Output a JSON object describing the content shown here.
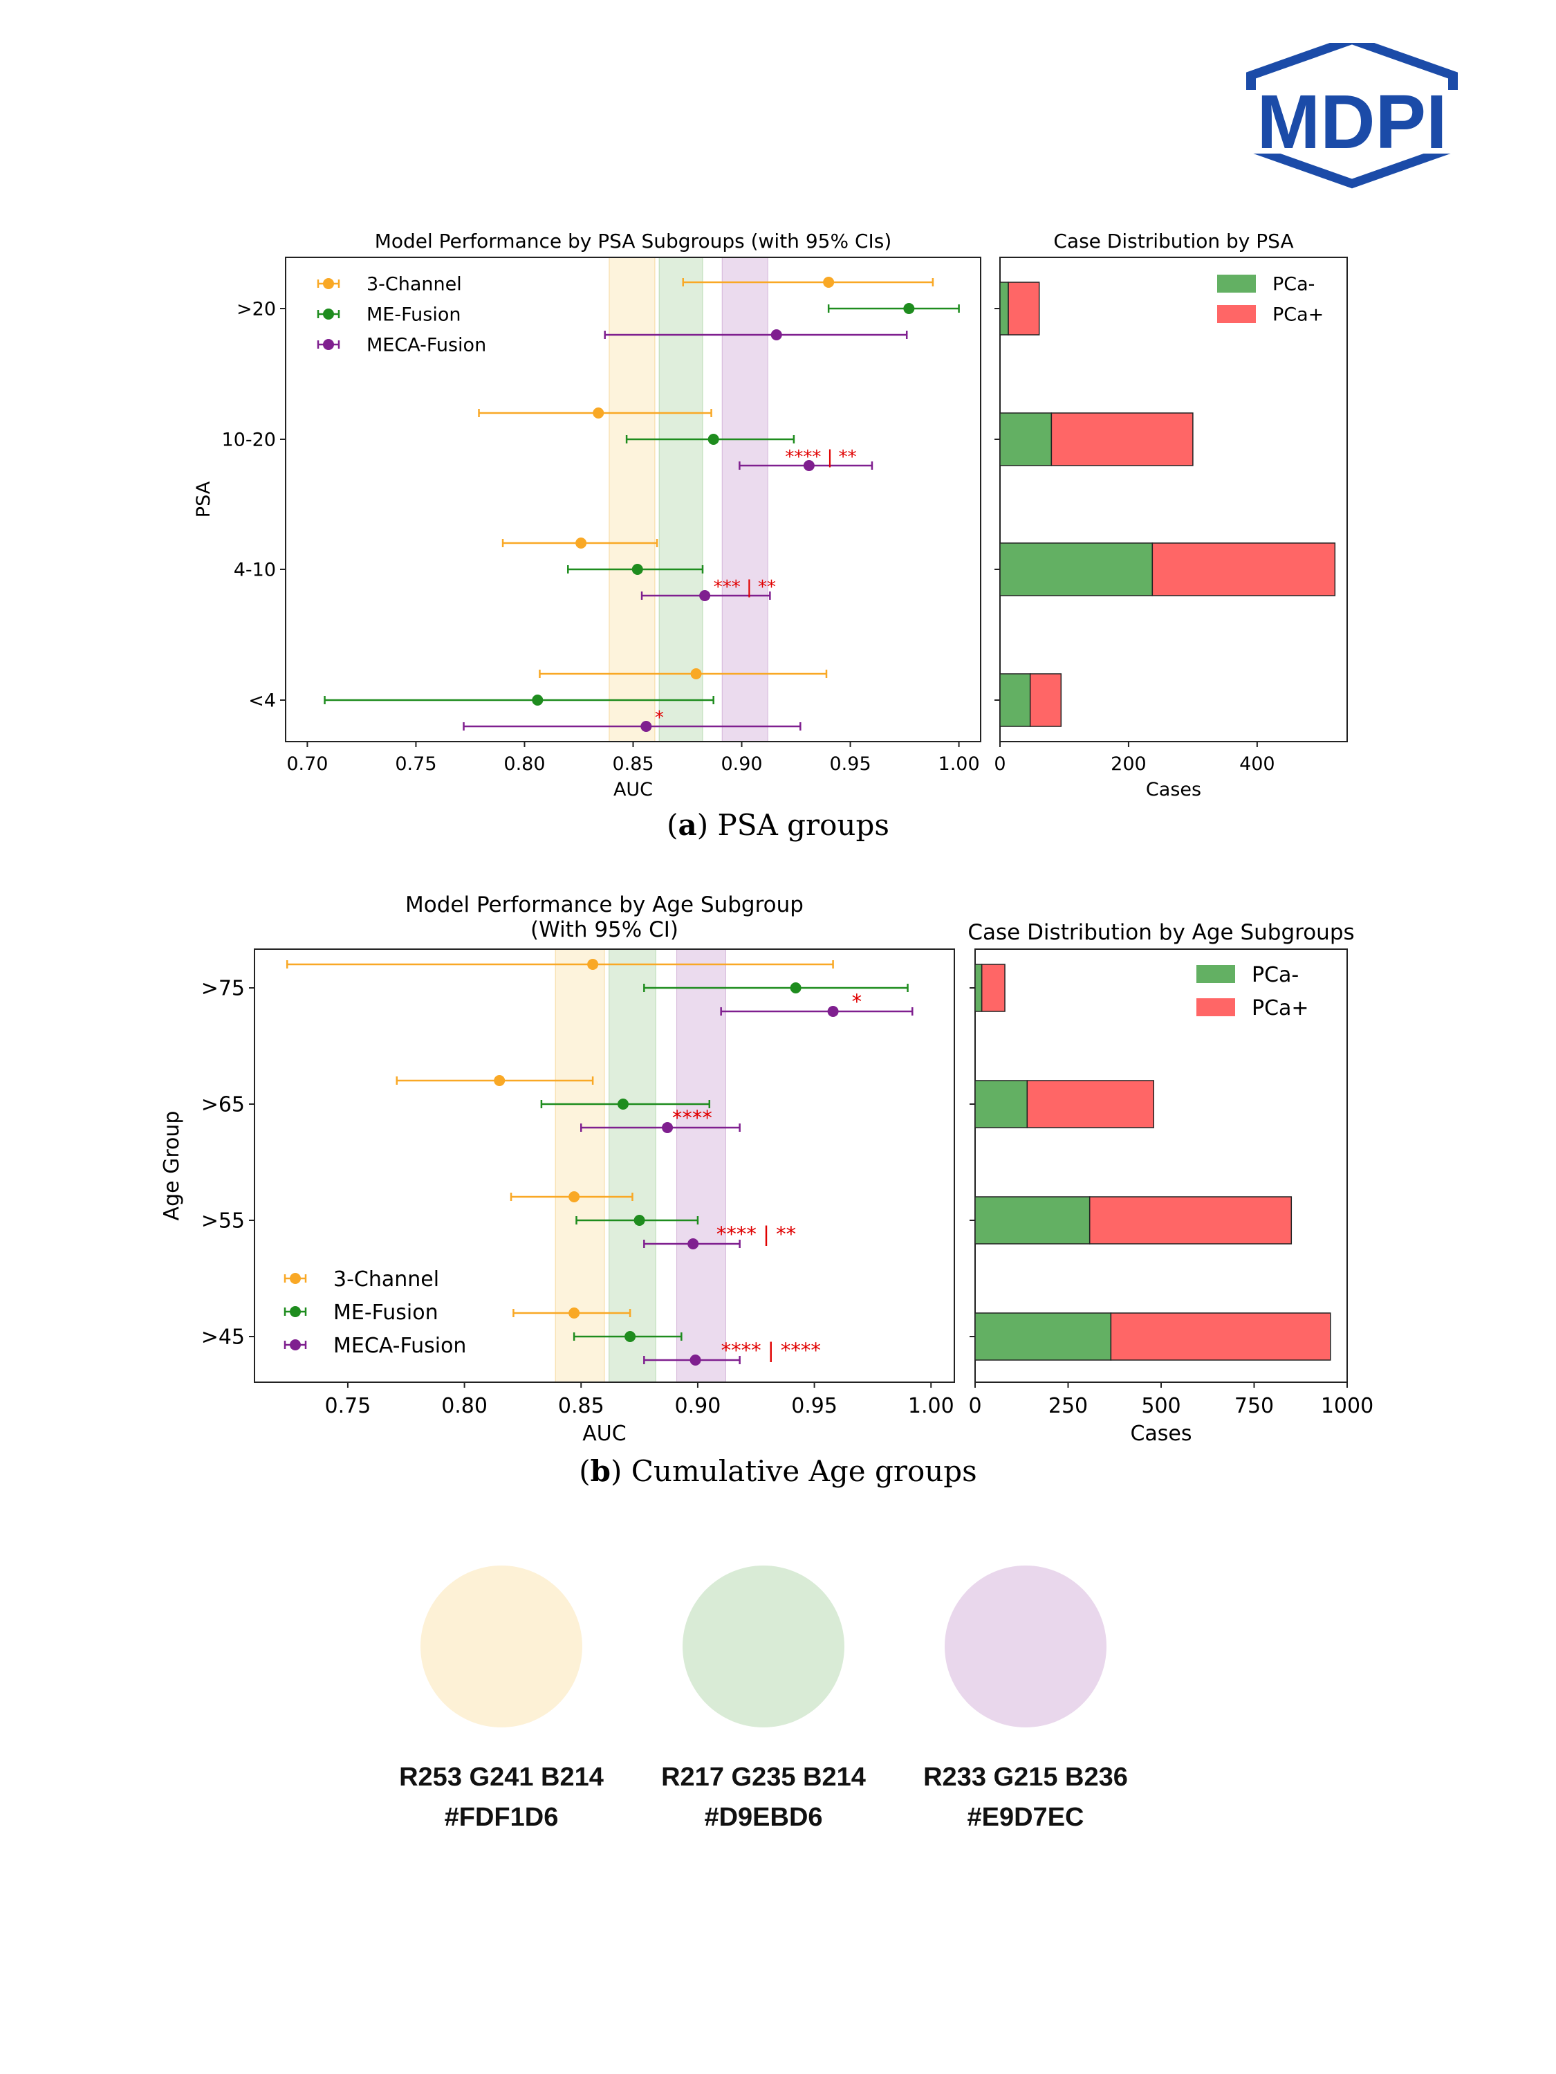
{
  "publisher": {
    "logo_text": "MDPI",
    "color": "#1b4ba8"
  },
  "colors": {
    "three_channel": "#f9a825",
    "me_fusion": "#1e8c1e",
    "meca_fusion": "#7f1f8f",
    "significance": "#e00000",
    "pca_neg": "#63b063",
    "pca_pos": "#ff6666"
  },
  "figure_a": {
    "caption_label": "a",
    "caption_text": "PSA groups"
  },
  "figure_b": {
    "caption_label": "b",
    "caption_text": "Cumulative Age groups"
  },
  "chart_data": [
    {
      "id": "psa-auc",
      "type": "scatter",
      "title": "Model Performance by PSA Subgroups (with 95% CIs)",
      "xlabel": "AUC",
      "ylabel": "PSA",
      "xlim": [
        0.69,
        1.01
      ],
      "xticks": [
        "0.70",
        "0.75",
        "0.80",
        "0.85",
        "0.90",
        "0.95",
        "1.00"
      ],
      "categories": [
        ">20",
        "10-20",
        "4-10",
        "<4"
      ],
      "legend": [
        "3-Channel",
        "ME-Fusion",
        "MECA-Fusion"
      ],
      "legend_position": "top-left",
      "bands": [
        {
          "name": "3-Channel",
          "from": 0.839,
          "to": 0.86
        },
        {
          "name": "ME-Fusion",
          "from": 0.862,
          "to": 0.882
        },
        {
          "name": "MECA-Fusion",
          "from": 0.891,
          "to": 0.912
        }
      ],
      "series": [
        {
          "name": "3-Channel",
          "values": [
            0.94,
            0.834,
            0.826,
            0.879
          ],
          "low": [
            0.873,
            0.779,
            0.79,
            0.807
          ],
          "high": [
            0.988,
            0.886,
            0.861,
            0.939
          ]
        },
        {
          "name": "ME-Fusion",
          "values": [
            0.977,
            0.887,
            0.852,
            0.806
          ],
          "low": [
            0.94,
            0.847,
            0.82,
            0.708
          ],
          "high": [
            1.0,
            0.924,
            0.882,
            0.887
          ]
        },
        {
          "name": "MECA-Fusion",
          "values": [
            0.916,
            0.931,
            0.883,
            0.856
          ],
          "low": [
            0.837,
            0.899,
            0.854,
            0.772
          ],
          "high": [
            0.976,
            0.96,
            0.913,
            0.927
          ]
        }
      ],
      "annotations": [
        {
          "category": "10-20",
          "series": "MECA-Fusion",
          "x": 0.92,
          "text": "**** | **"
        },
        {
          "category": "4-10",
          "series": "MECA-Fusion",
          "x": 0.887,
          "text": "*** | **"
        },
        {
          "category": "<4",
          "series": "MECA-Fusion",
          "x": 0.86,
          "text": "*"
        }
      ]
    },
    {
      "id": "psa-cases",
      "type": "bar",
      "title": "Case Distribution by PSA",
      "xlabel": "Cases",
      "ylabel": "",
      "xlim": [
        0,
        540
      ],
      "xticks": [
        "0",
        "200",
        "400"
      ],
      "categories": [
        ">20",
        "10-20",
        "4-10",
        "<4"
      ],
      "legend": [
        "PCa-",
        "PCa+"
      ],
      "legend_position": "top-right",
      "series": [
        {
          "name": "PCa-",
          "values": [
            13,
            80,
            237,
            47
          ]
        },
        {
          "name": "PCa+",
          "values": [
            48,
            220,
            284,
            48
          ]
        }
      ]
    },
    {
      "id": "age-auc",
      "type": "scatter",
      "title": "Model Performance by Age Subgroup",
      "subtitle": "(With 95% CI)",
      "xlabel": "AUC",
      "ylabel": "Age Group",
      "xlim": [
        0.71,
        1.01
      ],
      "xticks": [
        "0.75",
        "0.80",
        "0.85",
        "0.90",
        "0.95",
        "1.00"
      ],
      "categories": [
        ">75",
        ">65",
        ">55",
        ">45"
      ],
      "legend": [
        "3-Channel",
        "ME-Fusion",
        "MECA-Fusion"
      ],
      "legend_position": "bottom-left",
      "bands": [
        {
          "name": "3-Channel",
          "from": 0.839,
          "to": 0.86
        },
        {
          "name": "ME-Fusion",
          "from": 0.862,
          "to": 0.882
        },
        {
          "name": "MECA-Fusion",
          "from": 0.891,
          "to": 0.912
        }
      ],
      "series": [
        {
          "name": "3-Channel",
          "values": [
            0.855,
            0.815,
            0.847,
            0.847
          ],
          "low": [
            0.724,
            0.771,
            0.82,
            0.821
          ],
          "high": [
            0.958,
            0.855,
            0.872,
            0.871
          ]
        },
        {
          "name": "ME-Fusion",
          "values": [
            0.942,
            0.868,
            0.875,
            0.871
          ],
          "low": [
            0.877,
            0.833,
            0.848,
            0.847
          ],
          "high": [
            0.99,
            0.905,
            0.9,
            0.893
          ]
        },
        {
          "name": "MECA-Fusion",
          "values": [
            0.958,
            0.887,
            0.898,
            0.899
          ],
          "low": [
            0.91,
            0.85,
            0.877,
            0.877
          ],
          "high": [
            0.992,
            0.918,
            0.918,
            0.918
          ]
        }
      ],
      "annotations": [
        {
          "category": ">75",
          "series": "MECA-Fusion",
          "x": 0.966,
          "text": "*"
        },
        {
          "category": ">65",
          "series": "MECA-Fusion",
          "x": 0.889,
          "text": "****"
        },
        {
          "category": ">55",
          "series": "MECA-Fusion",
          "x": 0.908,
          "text": "**** | **"
        },
        {
          "category": ">45",
          "series": "MECA-Fusion",
          "x": 0.91,
          "text": "**** | ****"
        }
      ]
    },
    {
      "id": "age-cases",
      "type": "bar",
      "title": "Case Distribution by Age Subgroups",
      "xlabel": "Cases",
      "ylabel": "",
      "xlim": [
        0,
        1000
      ],
      "xticks": [
        "0",
        "250",
        "500",
        "750",
        "1000"
      ],
      "categories": [
        ">75",
        ">65",
        ">55",
        ">45"
      ],
      "legend": [
        "PCa-",
        "PCa+"
      ],
      "legend_position": "top-right",
      "series": [
        {
          "name": "PCa-",
          "values": [
            18,
            140,
            308,
            365
          ]
        },
        {
          "name": "PCa+",
          "values": [
            62,
            340,
            542,
            590
          ]
        }
      ]
    }
  ],
  "swatches": [
    {
      "color": "#FDF1D6",
      "rgb": "R253 G241 B214",
      "hex": "#FDF1D6"
    },
    {
      "color": "#D9EBD6",
      "rgb": "R217 G235 B214",
      "hex": "#D9EBD6"
    },
    {
      "color": "#E9D7EC",
      "rgb": "R233 G215 B236",
      "hex": "#E9D7EC"
    }
  ]
}
